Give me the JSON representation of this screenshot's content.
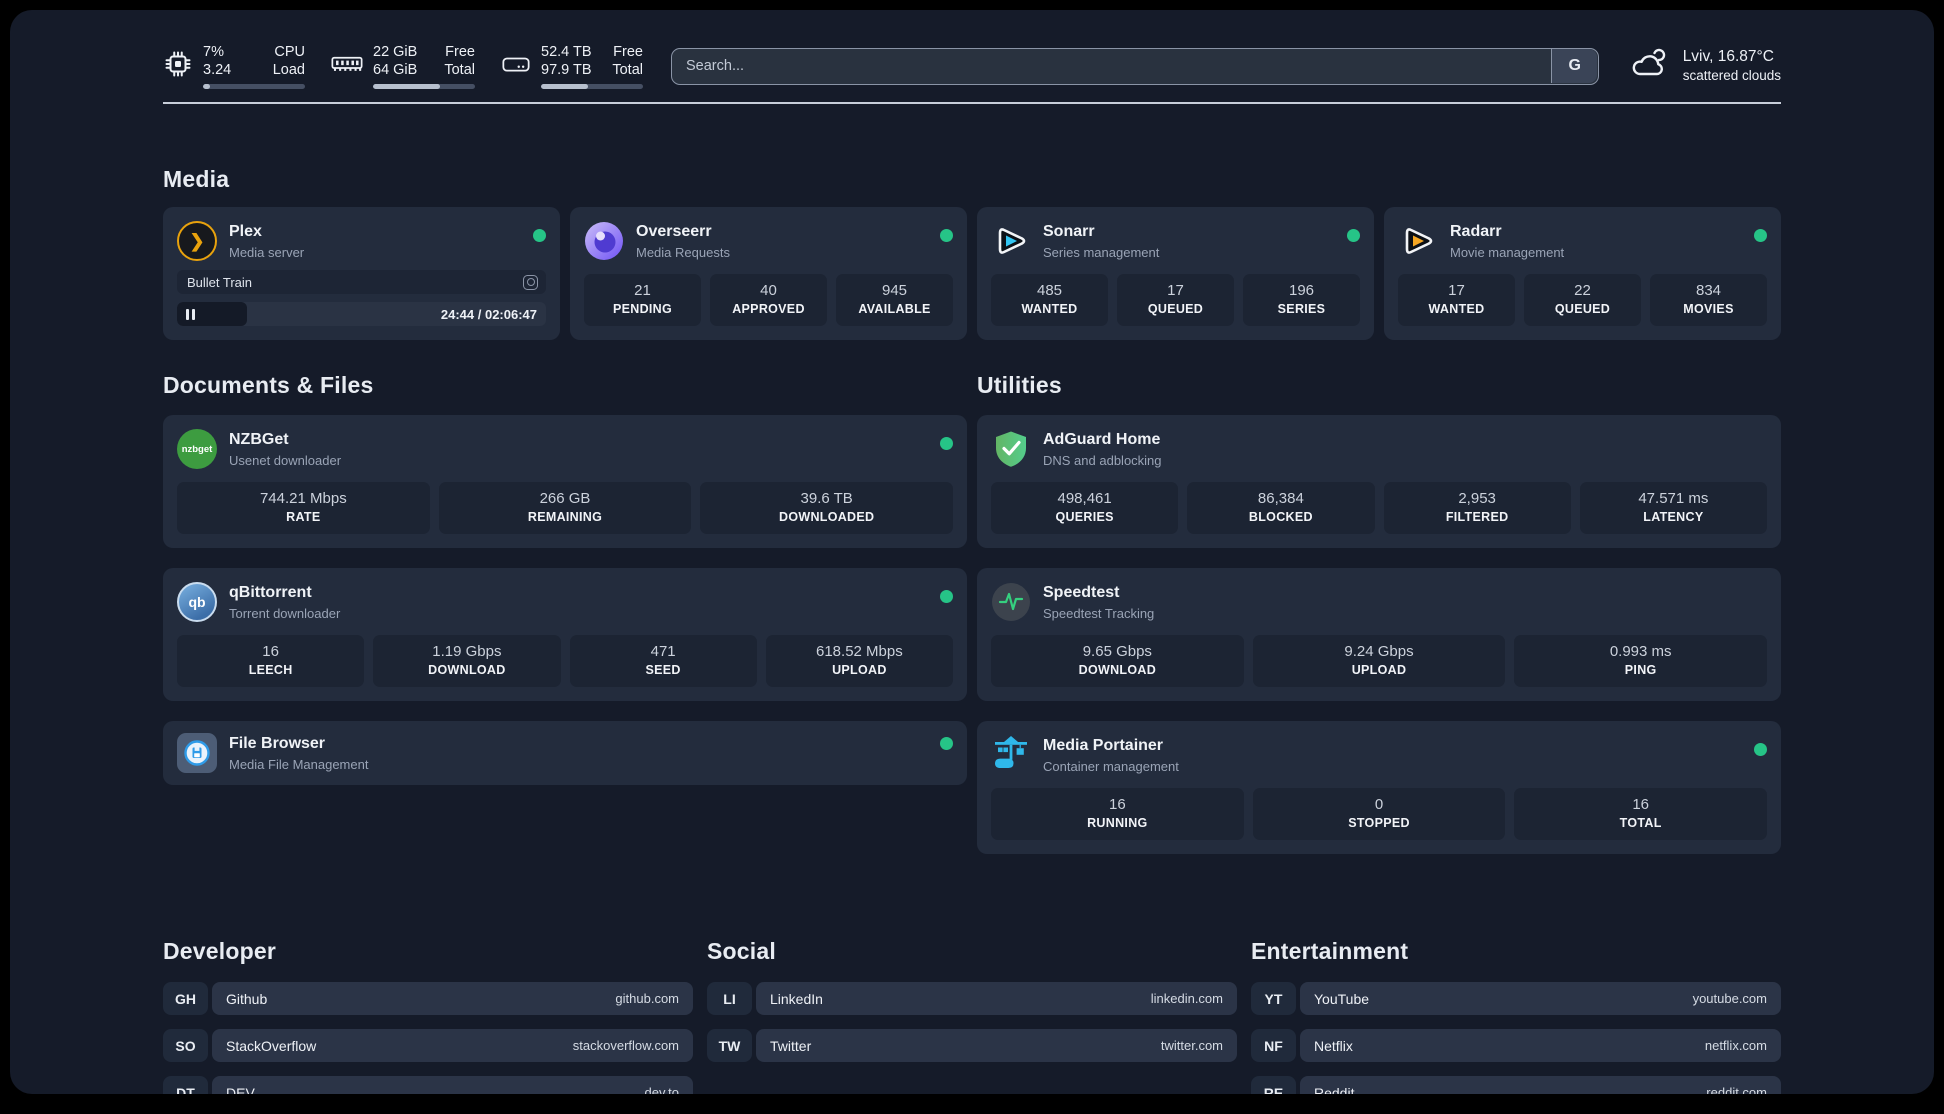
{
  "header": {
    "cpu": {
      "percent": "7%",
      "load": "3.24",
      "label_top": "CPU",
      "label_bottom": "Load",
      "progress_pct": 7
    },
    "memory": {
      "free": "22 GiB",
      "total": "64 GiB",
      "label_top": "Free",
      "label_bottom": "Total",
      "progress_pct": 66
    },
    "storage": {
      "free": "52.4 TB",
      "total": "97.9 TB",
      "label_top": "Free",
      "label_bottom": "Total",
      "progress_pct": 46
    },
    "search": {
      "placeholder": "Search...",
      "engine_button": "G"
    },
    "weather": {
      "summary": "Lviv, 16.87°C",
      "condition": "scattered clouds"
    }
  },
  "glyphs": {
    "plex": "❯",
    "nzbget": "nzbget",
    "qbittorrent": "qb"
  },
  "colors": {
    "background": "#151b29",
    "card": "#232c3d",
    "tile": "#1c2433",
    "status_green": "#26c487"
  },
  "icons": {
    "cpu": "cpu-chip-icon",
    "memory": "memory-stick-icon",
    "storage": "hard-disk-icon",
    "weather": "scattered-clouds-icon",
    "plex": "plex-chevron-icon",
    "overseerr": "overseerr-eye-icon",
    "sonarr": "sonarr-play-icon",
    "radarr": "radarr-play-icon",
    "nzbget": "nzbget-circle-icon",
    "qbittorrent": "qbittorrent-circle-icon",
    "filebrowser": "filebrowser-floppy-icon",
    "adguard": "adguard-shield-icon",
    "speedtest": "speedtest-pulse-icon",
    "portainer": "portainer-crane-icon",
    "player": "pause-icon",
    "now_playing": "camera-icon"
  },
  "media": {
    "heading": "Media",
    "plex": {
      "name": "Plex",
      "description": "Media server",
      "online": true,
      "now_playing": "Bullet Train",
      "time": "24:44 / 02:06:47",
      "progress_pct": 19
    },
    "apps": [
      {
        "name": "Overseerr",
        "description": "Media Requests",
        "online": true,
        "stats": [
          {
            "value": "21",
            "label": "PENDING"
          },
          {
            "value": "40",
            "label": "APPROVED"
          },
          {
            "value": "945",
            "label": "AVAILABLE"
          }
        ]
      },
      {
        "name": "Sonarr",
        "description": "Series management",
        "online": true,
        "stats": [
          {
            "value": "485",
            "label": "WANTED"
          },
          {
            "value": "17",
            "label": "QUEUED"
          },
          {
            "value": "196",
            "label": "SERIES"
          }
        ]
      },
      {
        "name": "Radarr",
        "description": "Movie management",
        "online": true,
        "stats": [
          {
            "value": "17",
            "label": "WANTED"
          },
          {
            "value": "22",
            "label": "QUEUED"
          },
          {
            "value": "834",
            "label": "MOVIES"
          }
        ]
      }
    ]
  },
  "documents": {
    "heading": "Documents & Files",
    "apps": [
      {
        "name": "NZBGet",
        "description": "Usenet downloader",
        "online": true,
        "stats": [
          {
            "value": "744.21 Mbps",
            "label": "RATE"
          },
          {
            "value": "266 GB",
            "label": "REMAINING"
          },
          {
            "value": "39.6 TB",
            "label": "DOWNLOADED"
          }
        ]
      },
      {
        "name": "qBittorrent",
        "description": "Torrent downloader",
        "online": true,
        "stats": [
          {
            "value": "16",
            "label": "LEECH"
          },
          {
            "value": "1.19 Gbps",
            "label": "DOWNLOAD"
          },
          {
            "value": "471",
            "label": "SEED"
          },
          {
            "value": "618.52 Mbps",
            "label": "UPLOAD"
          }
        ]
      },
      {
        "name": "File Browser",
        "description": "Media File Management",
        "online": true,
        "stats": []
      }
    ]
  },
  "utilities": {
    "heading": "Utilities",
    "apps": [
      {
        "name": "AdGuard Home",
        "description": "DNS and adblocking",
        "online": false,
        "stats": [
          {
            "value": "498,461",
            "label": "QUERIES"
          },
          {
            "value": "86,384",
            "label": "BLOCKED"
          },
          {
            "value": "2,953",
            "label": "FILTERED"
          },
          {
            "value": "47.571 ms",
            "label": "LATENCY"
          }
        ]
      },
      {
        "name": "Speedtest",
        "description": "Speedtest Tracking",
        "online": false,
        "stats": [
          {
            "value": "9.65 Gbps",
            "label": "DOWNLOAD"
          },
          {
            "value": "9.24 Gbps",
            "label": "UPLOAD"
          },
          {
            "value": "0.993 ms",
            "label": "PING"
          }
        ]
      },
      {
        "name": "Media Portainer",
        "description": "Container management",
        "online": true,
        "stats": [
          {
            "value": "16",
            "label": "RUNNING"
          },
          {
            "value": "0",
            "label": "STOPPED"
          },
          {
            "value": "16",
            "label": "TOTAL"
          }
        ]
      }
    ]
  },
  "links": {
    "developer": {
      "heading": "Developer",
      "items": [
        {
          "abbr": "GH",
          "name": "Github",
          "url": "github.com"
        },
        {
          "abbr": "SO",
          "name": "StackOverflow",
          "url": "stackoverflow.com"
        },
        {
          "abbr": "DT",
          "name": "DEV",
          "url": "dev.to"
        }
      ]
    },
    "social": {
      "heading": "Social",
      "items": [
        {
          "abbr": "LI",
          "name": "LinkedIn",
          "url": "linkedin.com"
        },
        {
          "abbr": "TW",
          "name": "Twitter",
          "url": "twitter.com"
        }
      ]
    },
    "entertainment": {
      "heading": "Entertainment",
      "items": [
        {
          "abbr": "YT",
          "name": "YouTube",
          "url": "youtube.com"
        },
        {
          "abbr": "NF",
          "name": "Netflix",
          "url": "netflix.com"
        },
        {
          "abbr": "RE",
          "name": "Reddit",
          "url": "reddit.com"
        }
      ]
    }
  }
}
